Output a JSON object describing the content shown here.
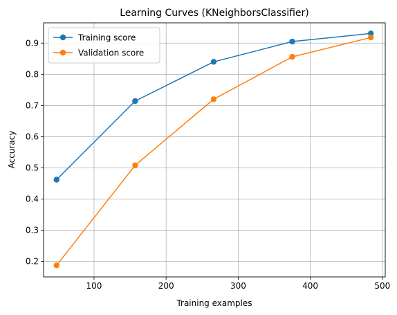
{
  "chart_data": {
    "type": "line",
    "title": "Learning Curves (KNeighborsClassifier)",
    "xlabel": "Training examples",
    "ylabel": "Accuracy",
    "xlim": [
      30,
      504
    ],
    "ylim": [
      0.15,
      0.965
    ],
    "xticks": [
      100,
      200,
      300,
      400,
      500
    ],
    "yticks": [
      0.2,
      0.3,
      0.4,
      0.5,
      0.6,
      0.7,
      0.8,
      0.9
    ],
    "grid": true,
    "legend_position": "top-left",
    "x": [
      48,
      157,
      266,
      375,
      484
    ],
    "series": [
      {
        "name": "Training score",
        "color": "#1f77b4",
        "values": [
          0.462,
          0.714,
          0.84,
          0.905,
          0.931
        ]
      },
      {
        "name": "Validation score",
        "color": "#ff7f0e",
        "values": [
          0.187,
          0.508,
          0.72,
          0.856,
          0.918
        ]
      }
    ]
  }
}
